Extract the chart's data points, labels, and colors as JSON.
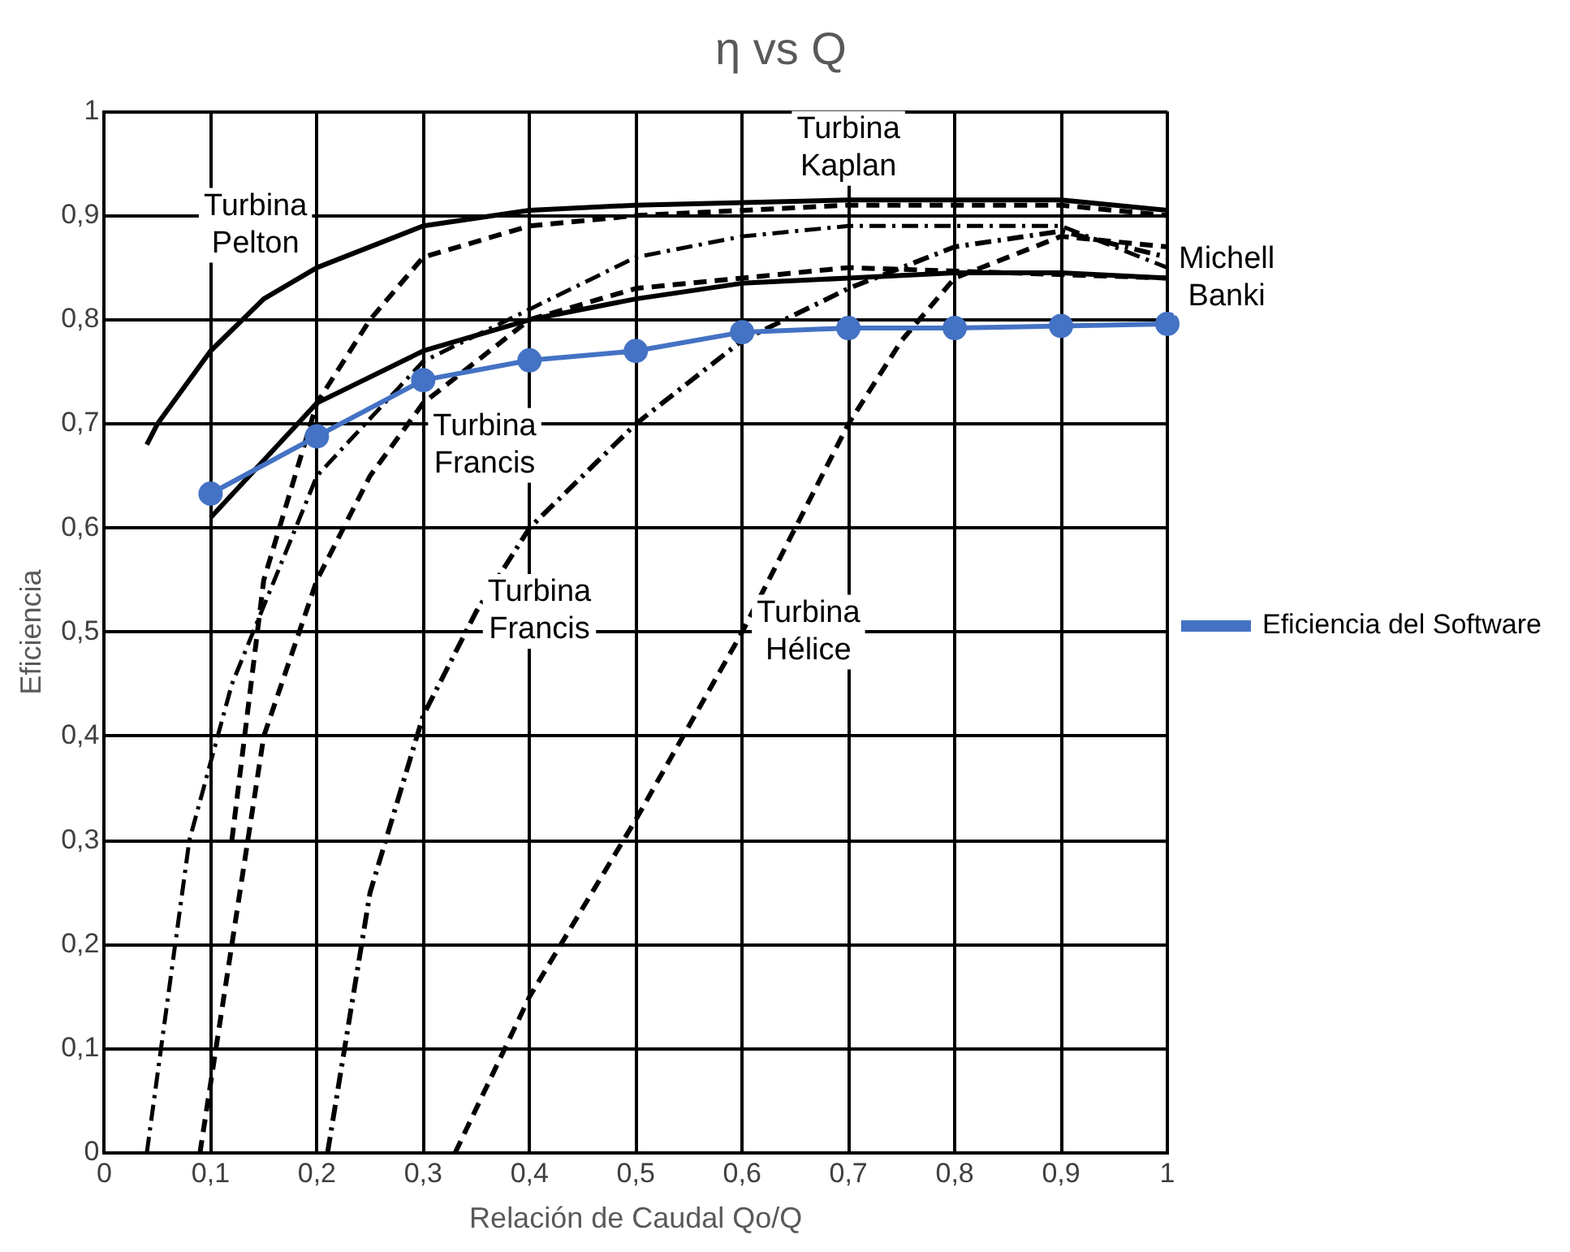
{
  "chart_data": {
    "type": "line",
    "title": "η vs Q",
    "xlabel": "Relación de Caudal Qo/Q",
    "ylabel": "Eficiencia",
    "xlim": [
      0,
      1
    ],
    "ylim": [
      0,
      1
    ],
    "xticks": [
      0,
      {
        "value": 0.1,
        "label": "0,1"
      },
      {
        "value": 0.2,
        "label": "0,2"
      },
      {
        "value": 0.3,
        "label": "0,3"
      },
      {
        "value": 0.4,
        "label": "0,4"
      },
      {
        "value": 0.5,
        "label": "0,5"
      },
      {
        "value": 0.6,
        "label": "0,6"
      },
      {
        "value": 0.7,
        "label": "0,7"
      },
      {
        "value": 0.8,
        "label": "0,8"
      },
      {
        "value": 0.9,
        "label": "0,9"
      },
      1
    ],
    "yticks": [
      0,
      {
        "value": 0.1,
        "label": "0,1"
      },
      {
        "value": 0.2,
        "label": "0,2"
      },
      {
        "value": 0.3,
        "label": "0,3"
      },
      {
        "value": 0.4,
        "label": "0,4"
      },
      {
        "value": 0.5,
        "label": "0,5"
      },
      {
        "value": 0.6,
        "label": "0,6"
      },
      {
        "value": 0.7,
        "label": "0,7"
      },
      {
        "value": 0.8,
        "label": "0,8"
      },
      {
        "value": 0.9,
        "label": "0,9"
      },
      1
    ],
    "grid": true,
    "legend": "right",
    "series": [
      {
        "name": "Eficiencia del Software",
        "color": "#4472c4",
        "marker": "circle",
        "line_style": "solid",
        "x": [
          0.1,
          0.2,
          0.3,
          0.4,
          0.5,
          0.6,
          0.7,
          0.8,
          0.9,
          1
        ],
        "values": [
          0.633,
          0.688,
          0.742,
          0.761,
          0.77,
          0.788,
          0.792,
          0.792,
          0.794,
          0.796
        ]
      },
      {
        "name": "Turbina Pelton",
        "color": "#000000",
        "marker": "none",
        "line_style": "solid",
        "x": [
          0.04,
          0.05,
          0.1,
          0.15,
          0.2,
          0.3,
          0.4,
          0.5,
          0.7,
          0.9,
          1
        ],
        "values": [
          0.68,
          0.7,
          0.77,
          0.82,
          0.85,
          0.89,
          0.905,
          0.91,
          0.915,
          0.915,
          0.905
        ]
      },
      {
        "name": "Turbina Kaplan",
        "color": "#000000",
        "marker": "none",
        "line_style": "dashed",
        "x": [
          0.12,
          0.15,
          0.2,
          0.25,
          0.3,
          0.4,
          0.5,
          0.7,
          0.9,
          1
        ],
        "values": [
          0.3,
          0.55,
          0.72,
          0.8,
          0.86,
          0.89,
          0.9,
          0.91,
          0.91,
          0.9
        ]
      },
      {
        "color": "#000000",
        "marker": "none",
        "line_style": "dotted",
        "x": [
          0.04,
          0.08,
          0.12,
          0.2,
          0.3,
          0.4,
          0.5,
          0.6,
          0.7,
          0.8,
          0.9,
          1
        ],
        "values": [
          0,
          0.3,
          0.45,
          0.65,
          0.76,
          0.81,
          0.86,
          0.88,
          0.89,
          0.89,
          0.89,
          0.85
        ]
      },
      {
        "name": "Turbina Francis",
        "color": "#000000",
        "marker": "none",
        "line_style": "dashed",
        "x": [
          0.09,
          0.12,
          0.15,
          0.2,
          0.25,
          0.3,
          0.4,
          0.5,
          0.7,
          1
        ],
        "values": [
          0,
          0.2,
          0.4,
          0.55,
          0.65,
          0.72,
          0.8,
          0.83,
          0.85,
          0.84
        ]
      },
      {
        "name": "Michell Banki",
        "color": "#000000",
        "marker": "none",
        "line_style": "solid",
        "x": [
          0.1,
          0.2,
          0.3,
          0.4,
          0.5,
          0.6,
          0.7,
          0.8,
          0.9,
          1
        ],
        "values": [
          0.61,
          0.72,
          0.77,
          0.8,
          0.82,
          0.835,
          0.84,
          0.845,
          0.845,
          0.84
        ]
      },
      {
        "name": "Turbina Francis",
        "color": "#000000",
        "marker": "none",
        "line_style": "dotted",
        "x": [
          0.21,
          0.25,
          0.3,
          0.35,
          0.4,
          0.5,
          0.6,
          0.7,
          0.8,
          0.9,
          1
        ],
        "values": [
          0,
          0.25,
          0.42,
          0.52,
          0.6,
          0.7,
          0.78,
          0.83,
          0.87,
          0.885,
          0.86
        ]
      },
      {
        "name": "Turbina Hélice",
        "color": "#000000",
        "marker": "none",
        "line_style": "dashed",
        "x": [
          0.33,
          0.4,
          0.5,
          0.6,
          0.65,
          0.7,
          0.75,
          0.8,
          0.9,
          1
        ],
        "values": [
          0,
          0.15,
          0.32,
          0.5,
          0.6,
          0.7,
          0.78,
          0.84,
          0.88,
          0.87
        ]
      }
    ]
  }
}
